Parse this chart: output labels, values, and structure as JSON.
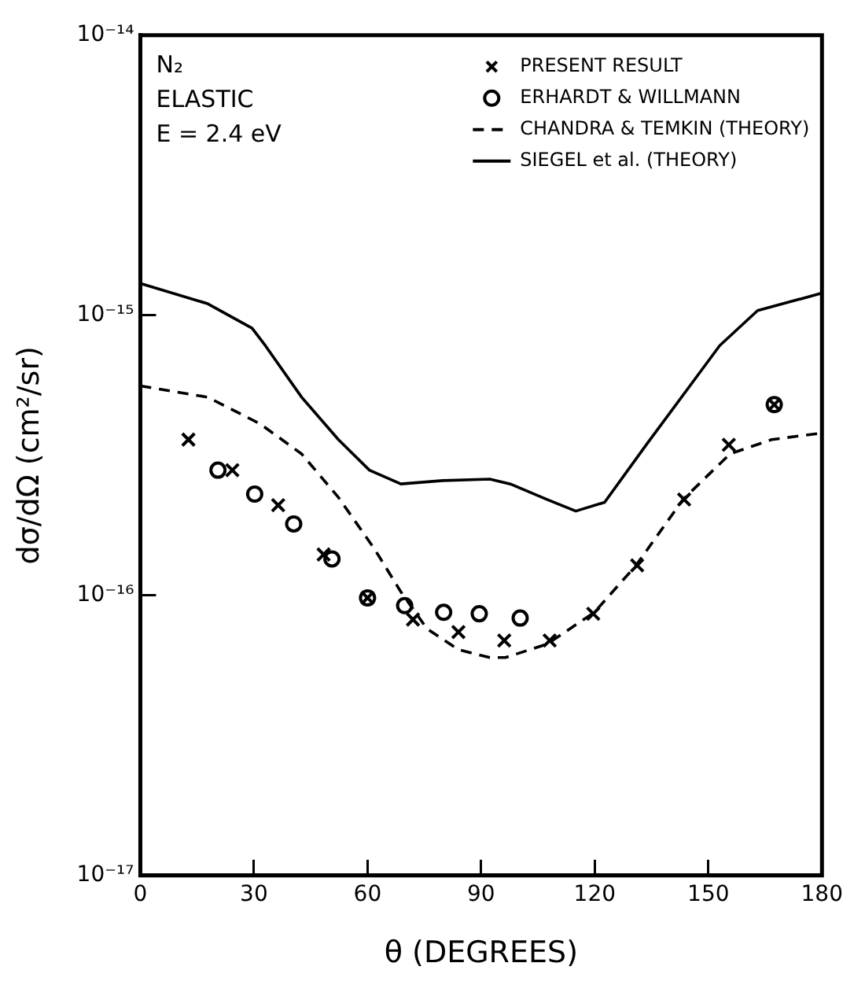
{
  "chart_data": {
    "type": "scatter",
    "xlabel": "θ (DEGREES)",
    "ylabel": "dσ/dΩ (cm²/sr)",
    "annotations": [
      "N₂",
      "ELASTIC",
      "E = 2.4 eV"
    ],
    "xlim": [
      0,
      180
    ],
    "xticks": [
      0,
      30,
      60,
      90,
      120,
      150,
      180
    ],
    "ylim": [
      1e-17,
      1e-14
    ],
    "yticks": [
      {
        "value": 1e-17,
        "label": "10⁻¹⁷"
      },
      {
        "value": 1e-16,
        "label": "10⁻¹⁶"
      },
      {
        "value": 1e-15,
        "label": "10⁻¹⁵"
      },
      {
        "value": 1e-14,
        "label": "10⁻¹⁴"
      }
    ],
    "log": "y",
    "grid": false,
    "legend": "top right",
    "series": [
      {
        "name": "PRESENT RESULT",
        "marker": "cross",
        "color": "#000000",
        "x": [
          12.7,
          24.3,
          36.4,
          48.4,
          60,
          72,
          84,
          96.1,
          108.1,
          119.6,
          131.2,
          143.6,
          155.4,
          167.4
        ],
        "values": [
          3.6e-16,
          2.8e-16,
          2.1e-16,
          1.4e-16,
          9.8e-17,
          8.2e-17,
          7.4e-17,
          6.9e-17,
          6.9e-17,
          8.6e-17,
          1.28e-16,
          2.2e-16,
          3.45e-16,
          4.8e-16
        ]
      },
      {
        "name": "ERHARDT & WILLMANN",
        "marker": "circle",
        "color": "#000000",
        "x": [
          20.5,
          30.2,
          40.5,
          50.6,
          60,
          69.8,
          80.1,
          89.5,
          100.3,
          167.4
        ],
        "values": [
          2.8e-16,
          2.3e-16,
          1.8e-16,
          1.35e-16,
          9.8e-17,
          9.2e-17,
          8.7e-17,
          8.6e-17,
          8.3e-17,
          4.8e-16
        ]
      },
      {
        "name": "CHANDRA & TEMKIN (THEORY)",
        "type": "line",
        "line_style": "dashed",
        "marker": "none",
        "color": "#000000",
        "x": [
          0,
          17.8,
          31.6,
          42.6,
          52.3,
          61.9,
          68.8,
          75.7,
          84,
          92.3,
          96.4,
          107.4,
          119.9,
          130.9,
          143.3,
          155.7,
          166.7,
          180
        ],
        "values": [
          5.6e-16,
          5.1e-16,
          4.1e-16,
          3.2e-16,
          2.24e-16,
          1.46e-16,
          1.03e-16,
          7.6e-17,
          6.4e-17,
          6e-17,
          6e-17,
          6.7e-17,
          8.7e-17,
          1.28e-16,
          2.2e-16,
          3.2e-16,
          3.6e-16,
          3.8e-16
        ]
      },
      {
        "name": "SIEGEL et al. (THEORY)",
        "type": "line",
        "line_style": "solid",
        "marker": "none",
        "color": "#000000",
        "x": [
          0,
          17.8,
          29.5,
          33,
          42.6,
          52.3,
          60.5,
          68.8,
          79.8,
          92.3,
          97.7,
          107.4,
          115,
          122.6,
          133.6,
          144.7,
          153,
          163,
          180
        ],
        "values": [
          1.3e-15,
          1.1e-15,
          9e-16,
          7.8e-16,
          5.1e-16,
          3.6e-16,
          2.8e-16,
          2.5e-16,
          2.57e-16,
          2.6e-16,
          2.5e-16,
          2.2e-16,
          2e-16,
          2.15e-16,
          3.45e-16,
          5.5e-16,
          7.8e-16,
          1.04e-15,
          1.2e-15
        ]
      }
    ]
  }
}
